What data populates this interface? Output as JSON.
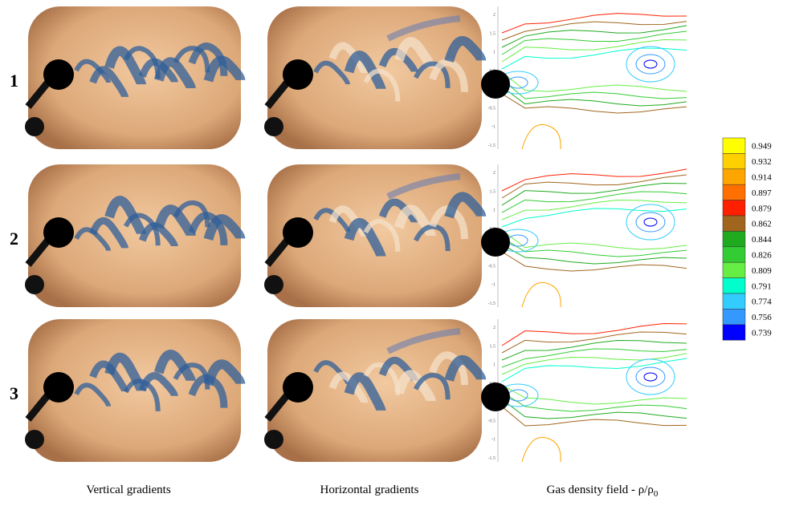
{
  "rows": [
    "1",
    "2",
    "3"
  ],
  "columns": [
    "Vertical gradients",
    "Horizontal gradients"
  ],
  "density_caption": {
    "text": "Gas density field - ρ/ρ",
    "subscript": "0"
  },
  "contour_ticks": [
    "2",
    "1.5",
    "1",
    "0.5",
    "0",
    "-0.5",
    "-1",
    "-1.5"
  ],
  "colorbar": {
    "labels": [
      "0.949",
      "0.932",
      "0.914",
      "0.897",
      "0.879",
      "0.862",
      "0.844",
      "0.826",
      "0.809",
      "0.791",
      "0.774",
      "0.756",
      "0.739"
    ],
    "colors": [
      "#ffff00",
      "#ffd000",
      "#ffa500",
      "#ff7000",
      "#ff2000",
      "#a0661e",
      "#1faa1f",
      "#33cc33",
      "#66ee44",
      "#00ffcc",
      "#33ccff",
      "#3399ff",
      "#0000ff"
    ]
  }
}
